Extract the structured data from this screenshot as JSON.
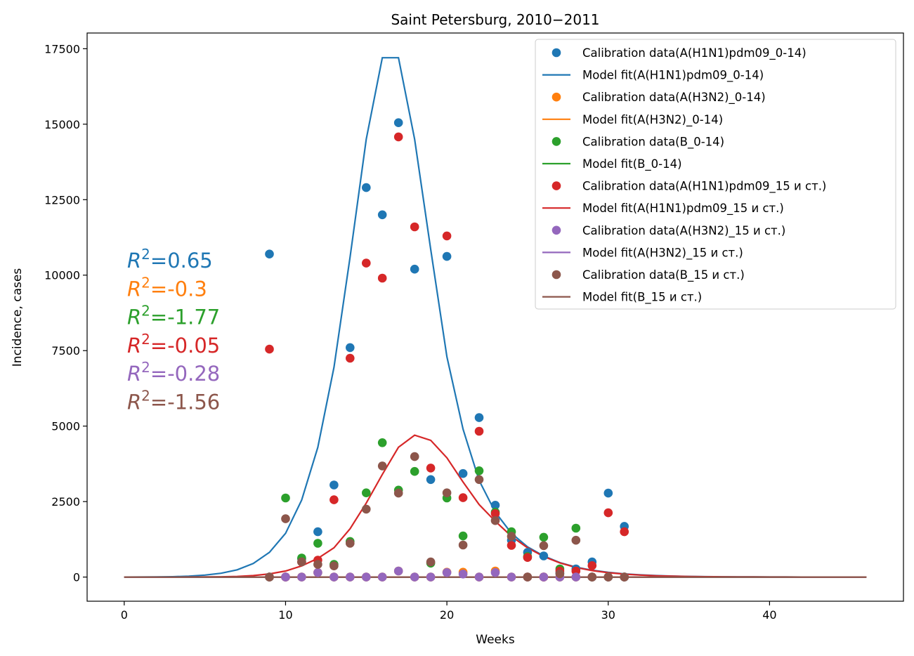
{
  "chart_data": {
    "type": "line",
    "title": "Saint Petersburg, 2010−2011",
    "xlabel": "Weeks",
    "ylabel": "Incidence, cases",
    "xlim": [
      -2.3,
      48.3
    ],
    "ylim": [
      -800,
      18020
    ],
    "xticks": [
      0,
      10,
      20,
      30,
      40
    ],
    "yticks": [
      0,
      2500,
      5000,
      7500,
      10000,
      12500,
      15000,
      17500
    ],
    "legend_position": "top-right",
    "calibration_x": [
      9,
      10,
      11,
      12,
      13,
      14,
      15,
      16,
      17,
      18,
      19,
      20,
      21,
      22,
      23,
      24,
      25,
      26,
      27,
      28,
      29,
      30,
      31
    ],
    "model_x": [
      0,
      1,
      2,
      3,
      4,
      5,
      6,
      7,
      8,
      9,
      10,
      11,
      12,
      13,
      14,
      15,
      16,
      17,
      18,
      19,
      20,
      21,
      22,
      23,
      24,
      25,
      26,
      27,
      28,
      29,
      30,
      31,
      32,
      33,
      34,
      35,
      36,
      37,
      38,
      39,
      40,
      41,
      42,
      43,
      44,
      45,
      46
    ],
    "series": [
      {
        "legend_points": "Calibration data(A(H1N1)pdm09_0-14)",
        "legend_line": "Model fit(A(H1N1)pdm09_0-14)",
        "color": "#1f77b4",
        "r2": "0.65",
        "points": [
          10700,
          0,
          600,
          1500,
          3050,
          7600,
          12900,
          12000,
          15050,
          10200,
          3230,
          10620,
          3430,
          5280,
          2380,
          1220,
          820,
          700,
          130,
          270,
          500,
          2780,
          1680
        ],
        "model": [
          0,
          2,
          5,
          12,
          30,
          65,
          125,
          240,
          450,
          820,
          1450,
          2550,
          4300,
          6950,
          10600,
          14500,
          17200,
          17200,
          14500,
          10850,
          7300,
          4900,
          3200,
          2150,
          1450,
          1000,
          700,
          480,
          330,
          225,
          155,
          105,
          72,
          49,
          33,
          22,
          15,
          10,
          7,
          5,
          3,
          2,
          1,
          1,
          0,
          0,
          0
        ]
      },
      {
        "legend_points": "Calibration data(A(H3N2)_0-14)",
        "legend_line": "Model fit(A(H3N2)_0-14)",
        "color": "#ff7f0e",
        "r2": "-0.3",
        "points": [
          0,
          0,
          0,
          150,
          0,
          0,
          0,
          0,
          200,
          0,
          0,
          160,
          160,
          0,
          200,
          0,
          0,
          0,
          0,
          0,
          0,
          0,
          0
        ],
        "model": [
          0,
          0,
          0,
          0,
          0,
          0,
          0,
          0,
          0,
          0,
          0,
          0,
          0,
          0,
          0,
          0,
          0,
          0,
          0,
          0,
          0,
          0,
          0,
          0,
          0,
          0,
          0,
          0,
          0,
          0,
          0,
          0,
          0,
          0,
          0,
          0,
          0,
          0,
          0,
          0,
          0,
          0,
          0,
          0,
          0,
          0,
          0
        ]
      },
      {
        "legend_points": "Calibration data(B_0-14)",
        "legend_line": "Model fit(B_0-14)",
        "color": "#2ca02c",
        "r2": "-1.77",
        "points": [
          0,
          2620,
          630,
          1120,
          420,
          1180,
          2790,
          4450,
          2880,
          3500,
          460,
          2620,
          1360,
          3520,
          2150,
          1500,
          680,
          1320,
          270,
          1620,
          0,
          0,
          0
        ],
        "model": [
          0,
          0,
          0,
          0,
          0,
          0,
          0,
          0,
          0,
          0,
          0,
          0,
          0,
          0,
          0,
          0,
          0,
          0,
          0,
          0,
          0,
          0,
          0,
          0,
          0,
          0,
          0,
          0,
          0,
          0,
          0,
          0,
          0,
          0,
          0,
          0,
          0,
          0,
          0,
          0,
          0,
          0,
          0,
          0,
          0,
          0,
          0
        ]
      },
      {
        "legend_points": "Calibration data(A(H1N1)pdm09_15 и ст.)",
        "legend_line": "Model fit(A(H1N1)pdm09_15 и ст.)",
        "color": "#d62728",
        "r2": "-0.05",
        "points": [
          7550,
          0,
          500,
          560,
          2560,
          7250,
          10400,
          9900,
          14580,
          11600,
          3610,
          11300,
          2630,
          4830,
          2100,
          1050,
          650,
          0,
          200,
          200,
          380,
          2130,
          1500
        ],
        "model": [
          0,
          0,
          0,
          1,
          2,
          5,
          10,
          22,
          50,
          105,
          200,
          370,
          620,
          970,
          1600,
          2450,
          3400,
          4300,
          4700,
          4530,
          3950,
          3150,
          2400,
          1850,
          1350,
          970,
          680,
          470,
          320,
          215,
          145,
          97,
          65,
          43,
          29,
          19,
          13,
          9,
          6,
          4,
          3,
          2,
          1,
          1,
          0,
          0,
          0
        ]
      },
      {
        "legend_points": "Calibration data(A(H3N2)_15 и ст.)",
        "legend_line": "Model fit(A(H3N2)_15 и ст.)",
        "color": "#9467bd",
        "r2": "-0.28",
        "points": [
          0,
          0,
          0,
          150,
          0,
          0,
          0,
          0,
          200,
          0,
          0,
          150,
          100,
          0,
          150,
          0,
          0,
          0,
          0,
          0,
          0,
          0,
          0
        ],
        "model": [
          0,
          0,
          0,
          0,
          0,
          0,
          0,
          0,
          0,
          0,
          0,
          0,
          0,
          0,
          0,
          0,
          0,
          0,
          0,
          0,
          0,
          0,
          0,
          0,
          0,
          0,
          0,
          0,
          0,
          0,
          0,
          0,
          0,
          0,
          0,
          0,
          0,
          0,
          0,
          0,
          0,
          0,
          0,
          0,
          0,
          0,
          0
        ]
      },
      {
        "legend_points": "Calibration data(B_15 и ст.)",
        "legend_line": "Model fit(B_15 и ст.)",
        "color": "#8c564b",
        "r2": "-1.56",
        "points": [
          0,
          1930,
          500,
          420,
          370,
          1120,
          2250,
          3680,
          2780,
          3990,
          500,
          2790,
          1060,
          3230,
          1870,
          1350,
          0,
          1040,
          110,
          1220,
          0,
          0,
          0
        ],
        "model": [
          0,
          0,
          0,
          0,
          0,
          0,
          0,
          0,
          0,
          0,
          0,
          0,
          0,
          0,
          0,
          0,
          0,
          0,
          0,
          0,
          0,
          0,
          0,
          0,
          0,
          0,
          0,
          0,
          0,
          0,
          0,
          0,
          0,
          0,
          0,
          0,
          0,
          0,
          0,
          0,
          0,
          0,
          0,
          0,
          0,
          0,
          0
        ]
      }
    ]
  }
}
